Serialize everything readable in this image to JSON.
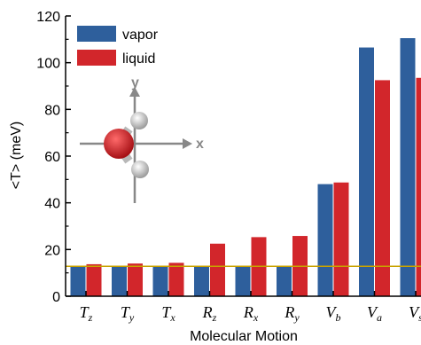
{
  "chart_data": {
    "type": "bar",
    "title": "",
    "xlabel": "Molecular Motion",
    "ylabel": "<T> (meV)",
    "ylim": [
      0,
      120
    ],
    "yticks": [
      0,
      20,
      40,
      60,
      80,
      100,
      120
    ],
    "categories": [
      {
        "main": "T",
        "sub": "z"
      },
      {
        "main": "T",
        "sub": "y"
      },
      {
        "main": "T",
        "sub": "x"
      },
      {
        "main": "R",
        "sub": "z"
      },
      {
        "main": "R",
        "sub": "x"
      },
      {
        "main": "R",
        "sub": "y"
      },
      {
        "main": "V",
        "sub": "b"
      },
      {
        "main": "V",
        "sub": "a"
      },
      {
        "main": "V",
        "sub": "s"
      }
    ],
    "series": [
      {
        "name": "vapor",
        "color": "#2e5f9c",
        "values": [
          13,
          13,
          13,
          13,
          13,
          13,
          48,
          106.5,
          110.5
        ]
      },
      {
        "name": "liquid",
        "color": "#d2262b",
        "values": [
          13.7,
          14,
          14.3,
          22.5,
          25.3,
          25.8,
          48.7,
          92.5,
          93.5
        ]
      }
    ],
    "reference_line": {
      "value": 12.8,
      "color": "#c8a200"
    },
    "legend_position": "top-left",
    "grid": false
  },
  "inset": {
    "axis_x_label": "x",
    "axis_y_label": "y",
    "oxygen_color": "#d61f26",
    "hydrogen_color": "#dddddd",
    "axis_color": "#888888"
  }
}
